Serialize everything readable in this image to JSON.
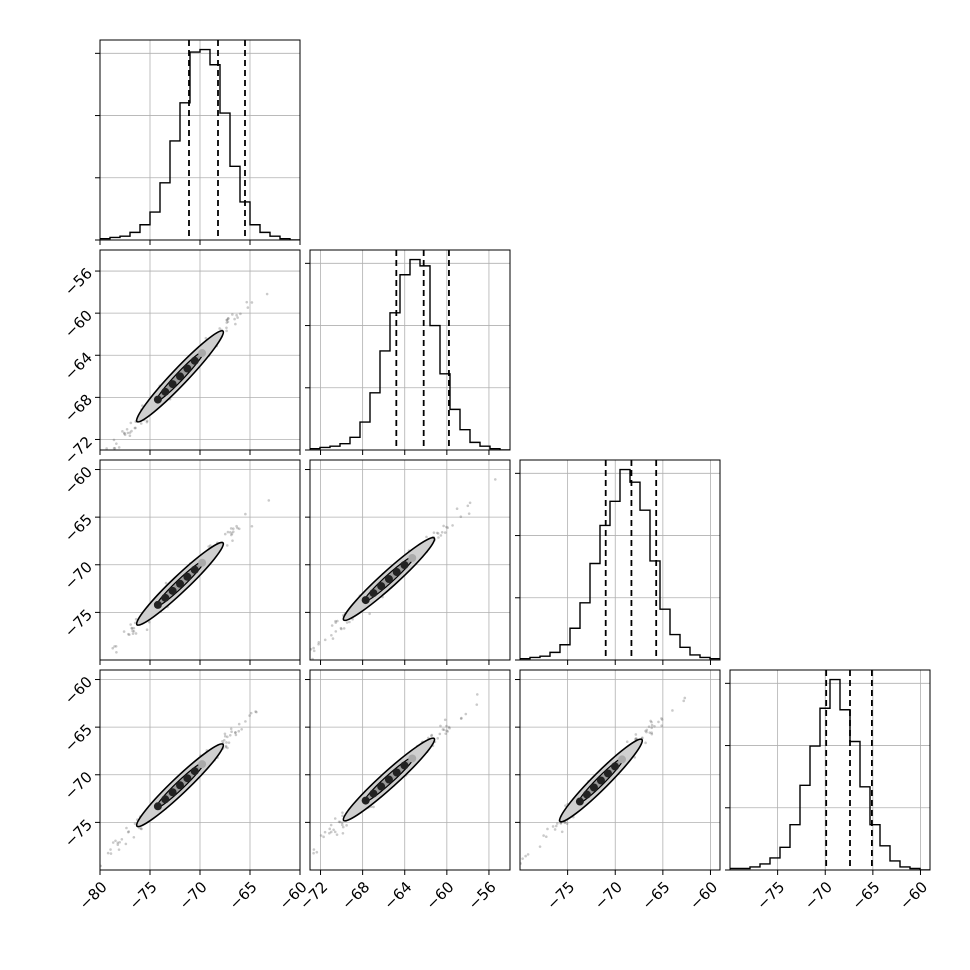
{
  "chart_data": {
    "type": "corner",
    "grid": true,
    "line_color": "#000000",
    "grid_color": "#b0b0b0",
    "point_color": "#666666",
    "fill_color": "#cfcfcf",
    "parameters": [
      {
        "range": [
          -80,
          -60
        ],
        "ticks": [
          -80,
          -75,
          -70,
          -65,
          -60
        ],
        "quantiles": [
          -71.1,
          -68.2,
          -65.5
        ]
      },
      {
        "range": [
          -73,
          -54
        ],
        "ticks": [
          -72,
          -68,
          -64,
          -60,
          -56
        ],
        "quantiles": [
          -64.8,
          -62.2,
          -59.8
        ]
      },
      {
        "range": [
          -80,
          -59
        ],
        "ticks": [
          -75,
          -70,
          -65,
          -60
        ],
        "quantiles": [
          -71,
          -68.3,
          -65.7
        ]
      },
      {
        "range": [
          -80,
          -59
        ],
        "ticks": [
          -75,
          -70,
          -65,
          -60
        ],
        "quantiles": [
          -69.9,
          -67.4,
          -65.1
        ]
      }
    ],
    "tick_labels": [
      [
        "−80",
        "−75",
        "−70",
        "−65",
        "−60"
      ],
      [
        "−72",
        "−68",
        "−64",
        "−60",
        "−56"
      ],
      [
        "−75",
        "−70",
        "−65",
        "−60"
      ],
      [
        "−75",
        "−70",
        "−65",
        "−60"
      ]
    ],
    "histograms": [
      {
        "edges_range": [
          -80,
          -60
        ],
        "counts": [
          1,
          2,
          3,
          6,
          12,
          22,
          45,
          78,
          108,
          148,
          150,
          138,
          100,
          58,
          30,
          12,
          6,
          3,
          1,
          0
        ]
      },
      {
        "edges_range": [
          -73,
          -54
        ],
        "counts": [
          1,
          2,
          3,
          5,
          10,
          22,
          45,
          78,
          108,
          138,
          150,
          145,
          98,
          60,
          32,
          16,
          6,
          3,
          1,
          0
        ]
      },
      {
        "edges_range": [
          -80,
          -59
        ],
        "counts": [
          1,
          2,
          3,
          6,
          12,
          25,
          45,
          76,
          106,
          125,
          150,
          140,
          118,
          78,
          40,
          20,
          10,
          4,
          2,
          1
        ]
      },
      {
        "edges_range": [
          -80,
          -59
        ],
        "counts": [
          1,
          1,
          2,
          4,
          8,
          15,
          30,
          56,
          82,
          107,
          126,
          106,
          85,
          55,
          30,
          16,
          6,
          2,
          1,
          0
        ]
      }
    ],
    "pairs": [
      {
        "row": 1,
        "col": 0,
        "slope": 1.0,
        "intercept": 6.0,
        "min": -80,
        "max": -60
      },
      {
        "row": 2,
        "col": 0,
        "slope": 1.0,
        "intercept": 0.0,
        "min": -80,
        "max": -60
      },
      {
        "row": 2,
        "col": 1,
        "slope": 1.0,
        "intercept": -6.0,
        "min": -73,
        "max": -54
      },
      {
        "row": 3,
        "col": 0,
        "slope": 1.0,
        "intercept": 0.9,
        "min": -80,
        "max": -60
      },
      {
        "row": 3,
        "col": 1,
        "slope": 1.0,
        "intercept": -5.0,
        "min": -73,
        "max": -54
      },
      {
        "row": 3,
        "col": 2,
        "slope": 1.0,
        "intercept": 0.9,
        "min": -80,
        "max": -59
      }
    ]
  }
}
